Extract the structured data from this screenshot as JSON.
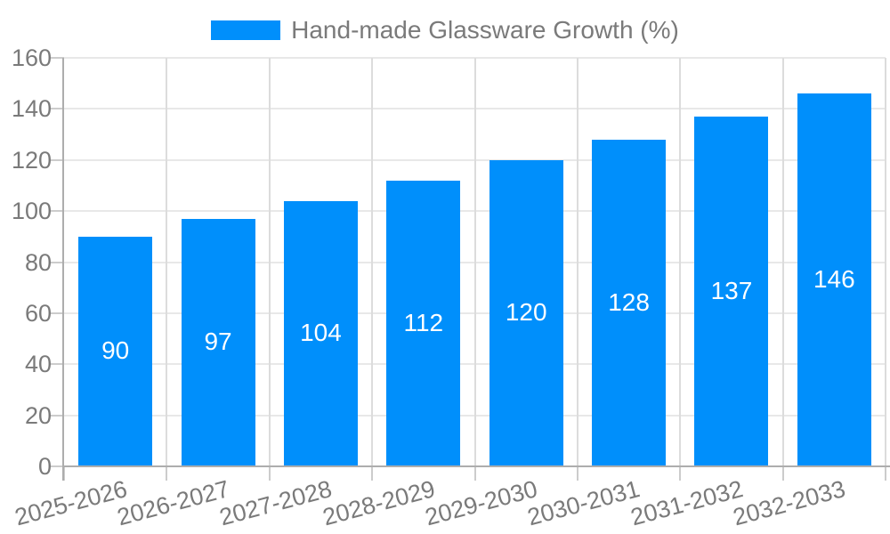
{
  "legend": {
    "label": "Hand-made Glassware Growth (%)"
  },
  "chart_data": {
    "type": "bar",
    "title": "",
    "legend_label": "Hand-made Glassware Growth (%)",
    "legend_position": "top",
    "categories": [
      "2025-2026",
      "2026-2027",
      "2027-2028",
      "2028-2029",
      "2029-2030",
      "2030-2031",
      "2031-2032",
      "2032-2033"
    ],
    "values": [
      90,
      97,
      104,
      112,
      120,
      128,
      137,
      146
    ],
    "xlabel": "",
    "ylabel": "",
    "ylim": [
      0,
      160
    ],
    "yticks": [
      0,
      20,
      40,
      60,
      80,
      100,
      120,
      140,
      160
    ],
    "grid": true,
    "x_label_rotation_deg": -15,
    "bar_value_labels_inside": true,
    "colors": {
      "bar": "#008FFB",
      "bar_label": "#FFFFFF",
      "axis_text": "#7A7A7A",
      "grid_horizontal": "#E8E8E8",
      "grid_vertical": "#DCDCDC",
      "axis_line": "#ADADAD",
      "tick": "#CCCCCC",
      "background": "#FFFFFF"
    }
  }
}
